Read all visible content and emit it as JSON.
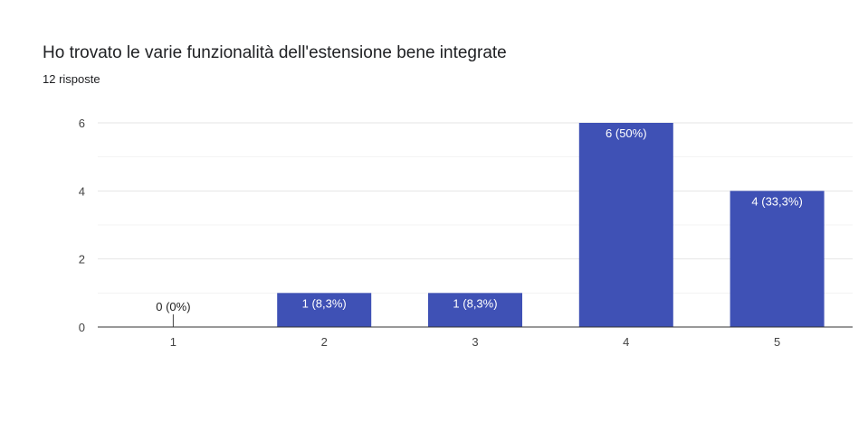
{
  "header": {
    "title": "Ho trovato le varie funzionalità dell'estensione bene integrate",
    "responses": "12 risposte"
  },
  "chart_data": {
    "type": "bar",
    "title": "Ho trovato le varie funzionalità dell'estensione bene integrate",
    "categories": [
      "1",
      "2",
      "3",
      "4",
      "5"
    ],
    "values": [
      0,
      1,
      1,
      6,
      4
    ],
    "data_labels": [
      "0 (0%)",
      "1 (8,3%)",
      "1 (8,3%)",
      "6 (50%)",
      "4 (33,3%)"
    ],
    "y_ticks": [
      "0",
      "2",
      "4",
      "6"
    ],
    "ylim": [
      0,
      6
    ],
    "xlabel": "",
    "ylabel": "",
    "grid": true,
    "bar_color": "#3f51b5"
  }
}
